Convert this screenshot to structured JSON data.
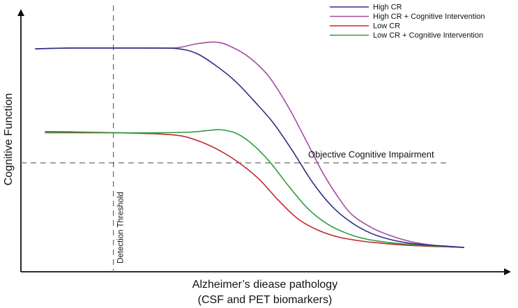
{
  "chart_data": {
    "type": "line",
    "title": "",
    "xlabel_line1": "Alzheimer’s diease pathology",
    "xlabel_line2": "(CSF and PET biomarkers)",
    "ylabel": "Cognitive Function",
    "xlim": [
      0,
      100
    ],
    "ylim": [
      0,
      100
    ],
    "grid": false,
    "legend_position": "top-right",
    "annotations": {
      "threshold_label": "Objective Cognitive Impairment",
      "threshold_y": 42,
      "detection_label": "Detection Threshold",
      "detection_x": 19
    },
    "series": [
      {
        "name": "High CR",
        "color": "#2b2f86",
        "points": [
          [
            3,
            86
          ],
          [
            10,
            86.3
          ],
          [
            18,
            86.3
          ],
          [
            26,
            86.3
          ],
          [
            32,
            86.1
          ],
          [
            36,
            84.3
          ],
          [
            40,
            79.6
          ],
          [
            44,
            73.6
          ],
          [
            48,
            65.7
          ],
          [
            52,
            57.1
          ],
          [
            56,
            46.1
          ],
          [
            60,
            34.3
          ],
          [
            64,
            25.1
          ],
          [
            68,
            18.9
          ],
          [
            72,
            14.8
          ],
          [
            76,
            12.4
          ],
          [
            80,
            11.0
          ],
          [
            84,
            10.3
          ],
          [
            88,
            9.8
          ],
          [
            91,
            9.4
          ]
        ]
      },
      {
        "name": "High CR + Cognitive Intervention",
        "color": "#a24c9f",
        "points": [
          [
            3,
            86
          ],
          [
            10,
            86.3
          ],
          [
            18,
            86.3
          ],
          [
            26,
            86.3
          ],
          [
            32,
            86.4
          ],
          [
            36,
            87.9
          ],
          [
            40,
            88.6
          ],
          [
            43,
            87.0
          ],
          [
            47,
            82.6
          ],
          [
            51,
            75.2
          ],
          [
            55,
            63.4
          ],
          [
            59,
            49.2
          ],
          [
            62,
            38.3
          ],
          [
            65,
            29.3
          ],
          [
            68,
            22.1
          ],
          [
            72,
            17.1
          ],
          [
            76,
            13.9
          ],
          [
            80,
            11.7
          ],
          [
            84,
            10.4
          ],
          [
            88,
            9.7
          ],
          [
            91,
            9.4
          ]
        ]
      },
      {
        "name": "Low CR",
        "color": "#c0282f",
        "points": [
          [
            5,
            54.1
          ],
          [
            12,
            53.9
          ],
          [
            20,
            53.6
          ],
          [
            28,
            53.2
          ],
          [
            33,
            52.4
          ],
          [
            37,
            50.1
          ],
          [
            41,
            46.6
          ],
          [
            45,
            41.8
          ],
          [
            49,
            35.6
          ],
          [
            53,
            27.4
          ],
          [
            57,
            20.3
          ],
          [
            61,
            16.1
          ],
          [
            65,
            13.5
          ],
          [
            69,
            12.1
          ],
          [
            73,
            11.2
          ],
          [
            78,
            10.4
          ],
          [
            83,
            9.9
          ],
          [
            88,
            9.6
          ],
          [
            91,
            9.4
          ]
        ]
      },
      {
        "name": "Low CR + Cognitive Intervention",
        "color": "#2e9a3a",
        "points": [
          [
            5,
            53.6
          ],
          [
            12,
            53.6
          ],
          [
            20,
            53.6
          ],
          [
            28,
            53.6
          ],
          [
            35,
            53.9
          ],
          [
            39,
            54.6
          ],
          [
            41,
            54.8
          ],
          [
            44,
            53.6
          ],
          [
            47,
            50.1
          ],
          [
            51,
            42.7
          ],
          [
            55,
            33.1
          ],
          [
            59,
            24.3
          ],
          [
            63,
            18.4
          ],
          [
            67,
            14.8
          ],
          [
            71,
            12.6
          ],
          [
            76,
            11.2
          ],
          [
            81,
            10.4
          ],
          [
            86,
            9.8
          ],
          [
            91,
            9.4
          ]
        ]
      }
    ]
  }
}
